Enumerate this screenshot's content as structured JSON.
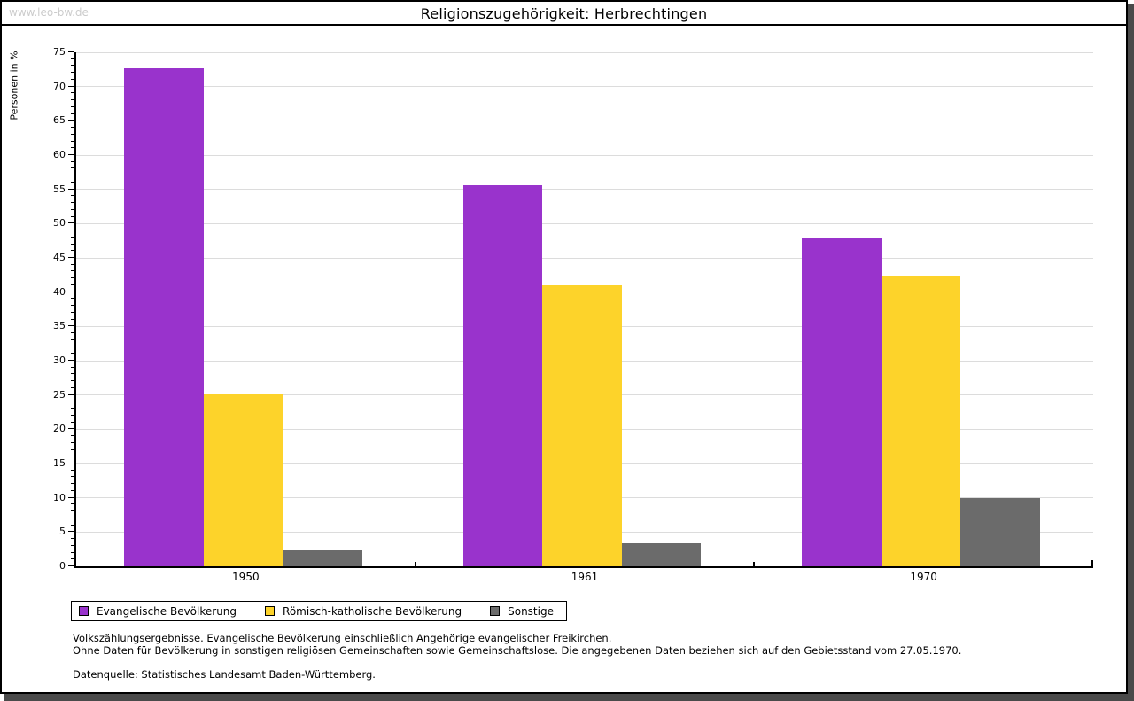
{
  "watermark": "www.leo-bw.de",
  "header": {
    "title": "Religionszugehörigkeit: Herbrechtingen"
  },
  "y_axis": {
    "label": "Personen in %",
    "min": 0,
    "max": 75,
    "major_step": 5,
    "minor_step": 1
  },
  "chart_data": {
    "type": "bar",
    "title": "Religionszugehörigkeit: Herbrechtingen",
    "xlabel": "",
    "ylabel": "Personen in %",
    "ylim": [
      0,
      75
    ],
    "grid": true,
    "legend_position": "bottom",
    "categories": [
      "1950",
      "1961",
      "1970"
    ],
    "series": [
      {
        "name": "Evangelische Bevölkerung",
        "color": "#9933cc",
        "values": [
          72.7,
          55.6,
          48.0
        ]
      },
      {
        "name": "Römisch-katholische Bevölkerung",
        "color": "#fdd32a",
        "values": [
          25.1,
          41.0,
          42.4
        ]
      },
      {
        "name": "Sonstige",
        "color": "#6b6b6b",
        "values": [
          2.3,
          3.3,
          9.9
        ]
      }
    ]
  },
  "footnotes": {
    "line1": "Volkszählungsergebnisse. Evangelische Bevölkerung einschließlich Angehörige evangelischer Freikirchen.",
    "line2": "Ohne Daten für Bevölkerung in sonstigen religiösen Gemeinschaften sowie Gemeinschaftslose. Die angegebenen Daten beziehen sich auf den Gebietsstand vom 27.05.1970.",
    "source": "Datenquelle: Statistisches Landesamt Baden-Württemberg."
  },
  "colors": {
    "gridline": "#dcdcdc",
    "axis": "#000000",
    "watermark": "#cccccc",
    "shadow": "#4a4a4a"
  }
}
